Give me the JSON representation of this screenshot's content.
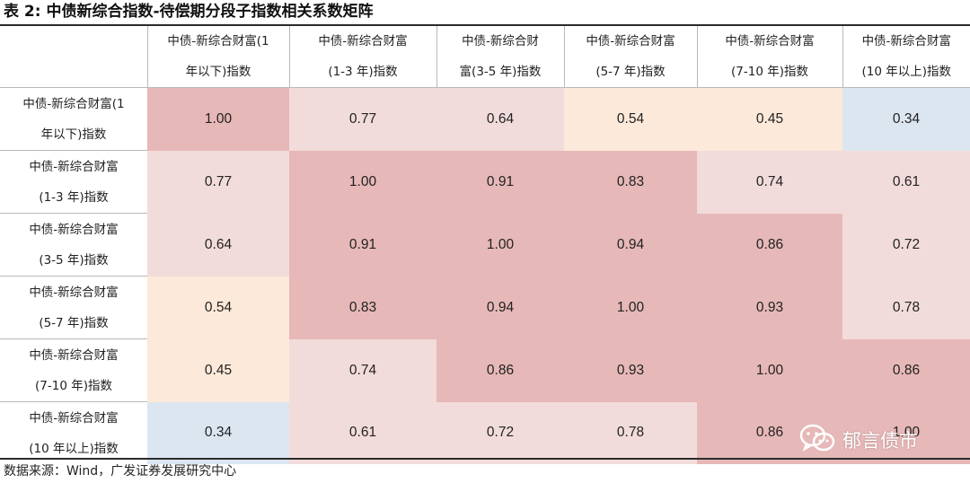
{
  "title": "表 2:  中债新综合指数-待偿期分段子指数相关系数矩阵",
  "columns": [
    [
      "中债-新综合财富(1",
      "年以下)指数"
    ],
    [
      "中债-新综合财富",
      "(1-3 年)指数"
    ],
    [
      "中债-新综合财",
      "富(3-5 年)指数"
    ],
    [
      "中债-新综合财富",
      "(5-7 年)指数"
    ],
    [
      "中债-新综合财富",
      "(7-10 年)指数"
    ],
    [
      "中债-新综合财富",
      "(10 年以上)指数"
    ]
  ],
  "rows": [
    {
      "label": [
        "中债-新综合财富(1",
        "年以下)指数"
      ],
      "values": [
        "1.00",
        "0.77",
        "0.64",
        "0.54",
        "0.45",
        "0.34"
      ]
    },
    {
      "label": [
        "中债-新综合财富",
        "(1-3 年)指数"
      ],
      "values": [
        "0.77",
        "1.00",
        "0.91",
        "0.83",
        "0.74",
        "0.61"
      ]
    },
    {
      "label": [
        "中债-新综合财富",
        "(3-5 年)指数"
      ],
      "values": [
        "0.64",
        "0.91",
        "1.00",
        "0.94",
        "0.86",
        "0.72"
      ]
    },
    {
      "label": [
        "中债-新综合财富",
        "(5-7 年)指数"
      ],
      "values": [
        "0.54",
        "0.83",
        "0.94",
        "1.00",
        "0.93",
        "0.78"
      ]
    },
    {
      "label": [
        "中债-新综合财富",
        "(7-10 年)指数"
      ],
      "values": [
        "0.45",
        "0.74",
        "0.86",
        "0.93",
        "1.00",
        "0.86"
      ]
    },
    {
      "label": [
        "中债-新综合财富",
        "(10 年以上)指数"
      ],
      "values": [
        "0.34",
        "0.61",
        "0.72",
        "0.78",
        "0.86",
        "1.00"
      ]
    }
  ],
  "colors": {
    "high": "#e6b8b7",
    "mid": "#f2dcdb",
    "warm": "#fde9d9",
    "low": "#dce6f1"
  },
  "watermark": "郁言债市",
  "source": "数据来源：Wind，广发证券发展研究中心"
}
